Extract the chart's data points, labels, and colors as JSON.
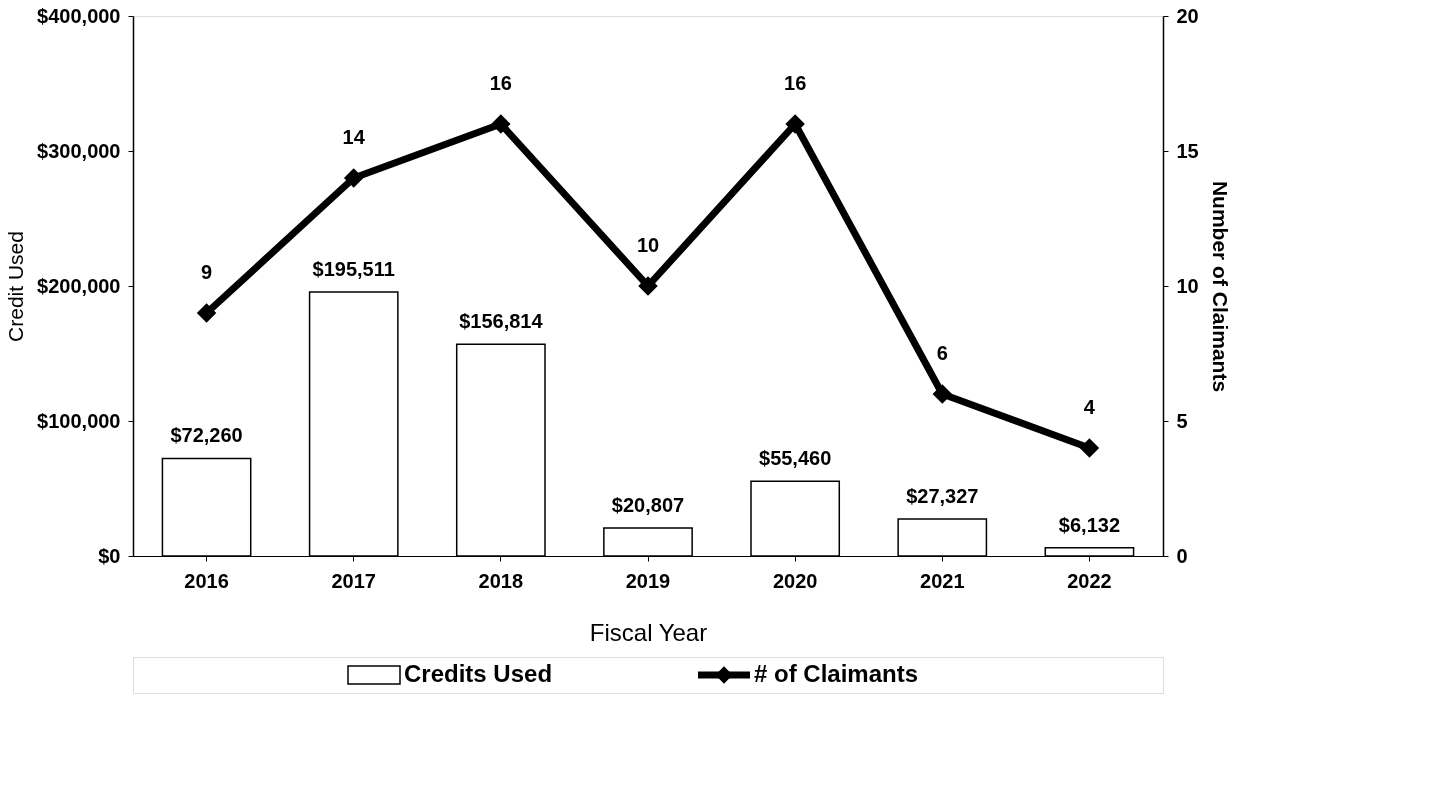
{
  "chart_data": {
    "type": "bar",
    "xlabel": "Fiscal Year",
    "ylabel": "Credit Used",
    "y2label": "Number of Claimants",
    "categories": [
      "2016",
      "2017",
      "2018",
      "2019",
      "2020",
      "2021",
      "2022"
    ],
    "series": [
      {
        "name": "Credits Used",
        "color": "#ffffff",
        "values": [
          72260,
          195511,
          156814,
          20807,
          55460,
          27327,
          6132
        ],
        "value_labels": [
          "$72,260",
          "$195,511",
          "$156,814",
          "$20,807",
          "$55,460",
          "$27,327",
          "$6,132"
        ]
      },
      {
        "name": "# of Claimants",
        "type": "line",
        "axis": "y2",
        "color": "#000000",
        "marker": "diamond",
        "line_style": "solid",
        "values": [
          9,
          14,
          16,
          10,
          16,
          6,
          4
        ],
        "value_labels": [
          "9",
          "14",
          "16",
          "10",
          "16",
          "6",
          "4"
        ]
      }
    ],
    "ylim": [
      0,
      400000
    ],
    "yticks": [
      {
        "value": 0,
        "label": "$0"
      },
      {
        "value": 100000,
        "label": "$100,000"
      },
      {
        "value": 200000,
        "label": "$200,000"
      },
      {
        "value": 300000,
        "label": "$300,000"
      },
      {
        "value": 400000,
        "label": "$400,000"
      }
    ],
    "y2lim": [
      0,
      20
    ],
    "y2ticks": [
      0,
      5,
      10,
      15,
      20
    ],
    "grid": false,
    "legend": "bottom"
  }
}
